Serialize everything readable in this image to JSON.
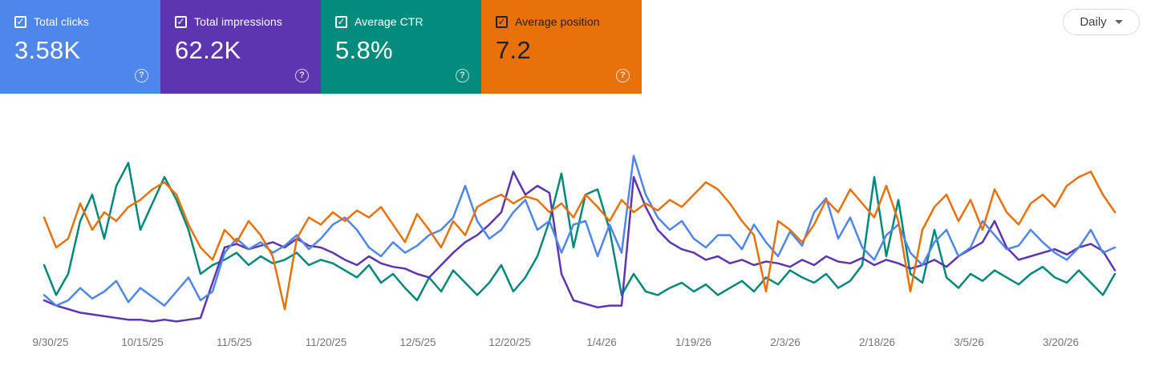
{
  "icons": {
    "check": "✓",
    "help": "?"
  },
  "controls": {
    "granularity": "Daily"
  },
  "cards": [
    {
      "label": "Total clicks",
      "value": "3.58K",
      "bg": "#4e86ec",
      "text": "#ffffff",
      "checked": true
    },
    {
      "label": "Total impressions",
      "value": "62.2K",
      "bg": "#5e35b1",
      "text": "#ffffff",
      "checked": true
    },
    {
      "label": "Average CTR",
      "value": "5.8%",
      "bg": "#038b7d",
      "text": "#ffffff",
      "checked": true
    },
    {
      "label": "Average position",
      "value": "7.2",
      "bg": "#e8710a",
      "text": "#212121",
      "checked": true
    }
  ],
  "chart_data": {
    "type": "line",
    "x_tick_labels": [
      "9/30/25",
      "10/15/25",
      "11/5/25",
      "11/20/25",
      "12/5/25",
      "12/20/25",
      "1/4/26",
      "1/19/26",
      "2/3/26",
      "2/18/26",
      "3/5/26",
      "3/20/26"
    ],
    "x_range": [
      "9/28/25",
      "3/27/26"
    ],
    "sampling": "daily series sampled ~every 2 days, 90 points per series",
    "y_axis": "hidden; each series independently normalized 0-100 of its own max (Search Console style)",
    "grid": false,
    "legend": "metric cards above act as legend toggles",
    "series": [
      {
        "name": "Total clicks",
        "key": "clicks",
        "color": "#4e86ec",
        "values": [
          18,
          12,
          15,
          22,
          16,
          20,
          26,
          14,
          22,
          17,
          12,
          20,
          28,
          15,
          20,
          42,
          50,
          44,
          48,
          42,
          46,
          52,
          44,
          50,
          58,
          62,
          55,
          45,
          40,
          48,
          42,
          46,
          52,
          55,
          62,
          80,
          60,
          50,
          55,
          65,
          72,
          55,
          60,
          42,
          58,
          60,
          40,
          58,
          42,
          97,
          75,
          62,
          55,
          60,
          50,
          45,
          52,
          52,
          44,
          58,
          48,
          40,
          54,
          46,
          65,
          73,
          50,
          62,
          45,
          38,
          52,
          58,
          42,
          35,
          48,
          55,
          40,
          45,
          60,
          52,
          44,
          46,
          55,
          48,
          42,
          38,
          45,
          55,
          42,
          45
        ]
      },
      {
        "name": "Total impressions",
        "key": "impressions",
        "color": "#5e35b1",
        "values": [
          15,
          12,
          10,
          8,
          7,
          6,
          5,
          4,
          4,
          3,
          4,
          3,
          4,
          5,
          25,
          45,
          47,
          44,
          46,
          48,
          45,
          50,
          46,
          45,
          42,
          38,
          35,
          40,
          36,
          34,
          33,
          30,
          28,
          35,
          42,
          48,
          52,
          58,
          65,
          88,
          75,
          80,
          76,
          30,
          15,
          13,
          11,
          12,
          12,
          85,
          68,
          55,
          48,
          44,
          42,
          38,
          40,
          36,
          38,
          35,
          37,
          36,
          34,
          38,
          35,
          40,
          37,
          36,
          39,
          35,
          38,
          36,
          33,
          35,
          38,
          34,
          40,
          44,
          48,
          60,
          45,
          38,
          40,
          42,
          44,
          41,
          45,
          47,
          43,
          32
        ]
      },
      {
        "name": "Average CTR",
        "key": "ctr",
        "color": "#00897b",
        "values": [
          35,
          18,
          30,
          60,
          75,
          50,
          80,
          93,
          55,
          70,
          85,
          72,
          55,
          30,
          35,
          38,
          42,
          35,
          40,
          36,
          38,
          42,
          35,
          38,
          36,
          32,
          28,
          35,
          25,
          30,
          22,
          15,
          28,
          20,
          32,
          25,
          18,
          25,
          35,
          20,
          28,
          40,
          60,
          87,
          45,
          75,
          78,
          55,
          18,
          30,
          20,
          18,
          22,
          25,
          20,
          24,
          18,
          22,
          26,
          20,
          28,
          24,
          32,
          28,
          25,
          30,
          22,
          26,
          35,
          85,
          40,
          72,
          30,
          25,
          55,
          28,
          22,
          30,
          26,
          32,
          28,
          24,
          30,
          34,
          28,
          25,
          32,
          25,
          18,
          30
        ]
      },
      {
        "name": "Average position",
        "key": "position",
        "color": "#e8710a",
        "values": [
          62,
          45,
          50,
          70,
          55,
          65,
          60,
          68,
          72,
          78,
          82,
          75,
          58,
          45,
          38,
          55,
          48,
          60,
          52,
          40,
          10,
          50,
          62,
          58,
          65,
          60,
          66,
          62,
          68,
          58,
          48,
          64,
          55,
          45,
          60,
          52,
          68,
          72,
          75,
          70,
          74,
          72,
          65,
          70,
          62,
          75,
          68,
          60,
          72,
          65,
          70,
          66,
          72,
          68,
          75,
          82,
          78,
          70,
          60,
          52,
          20,
          60,
          55,
          48,
          58,
          72,
          65,
          78,
          70,
          62,
          80,
          60,
          20,
          55,
          68,
          75,
          60,
          72,
          55,
          78,
          65,
          58,
          70,
          75,
          68,
          80,
          85,
          88,
          75,
          65
        ]
      }
    ]
  }
}
